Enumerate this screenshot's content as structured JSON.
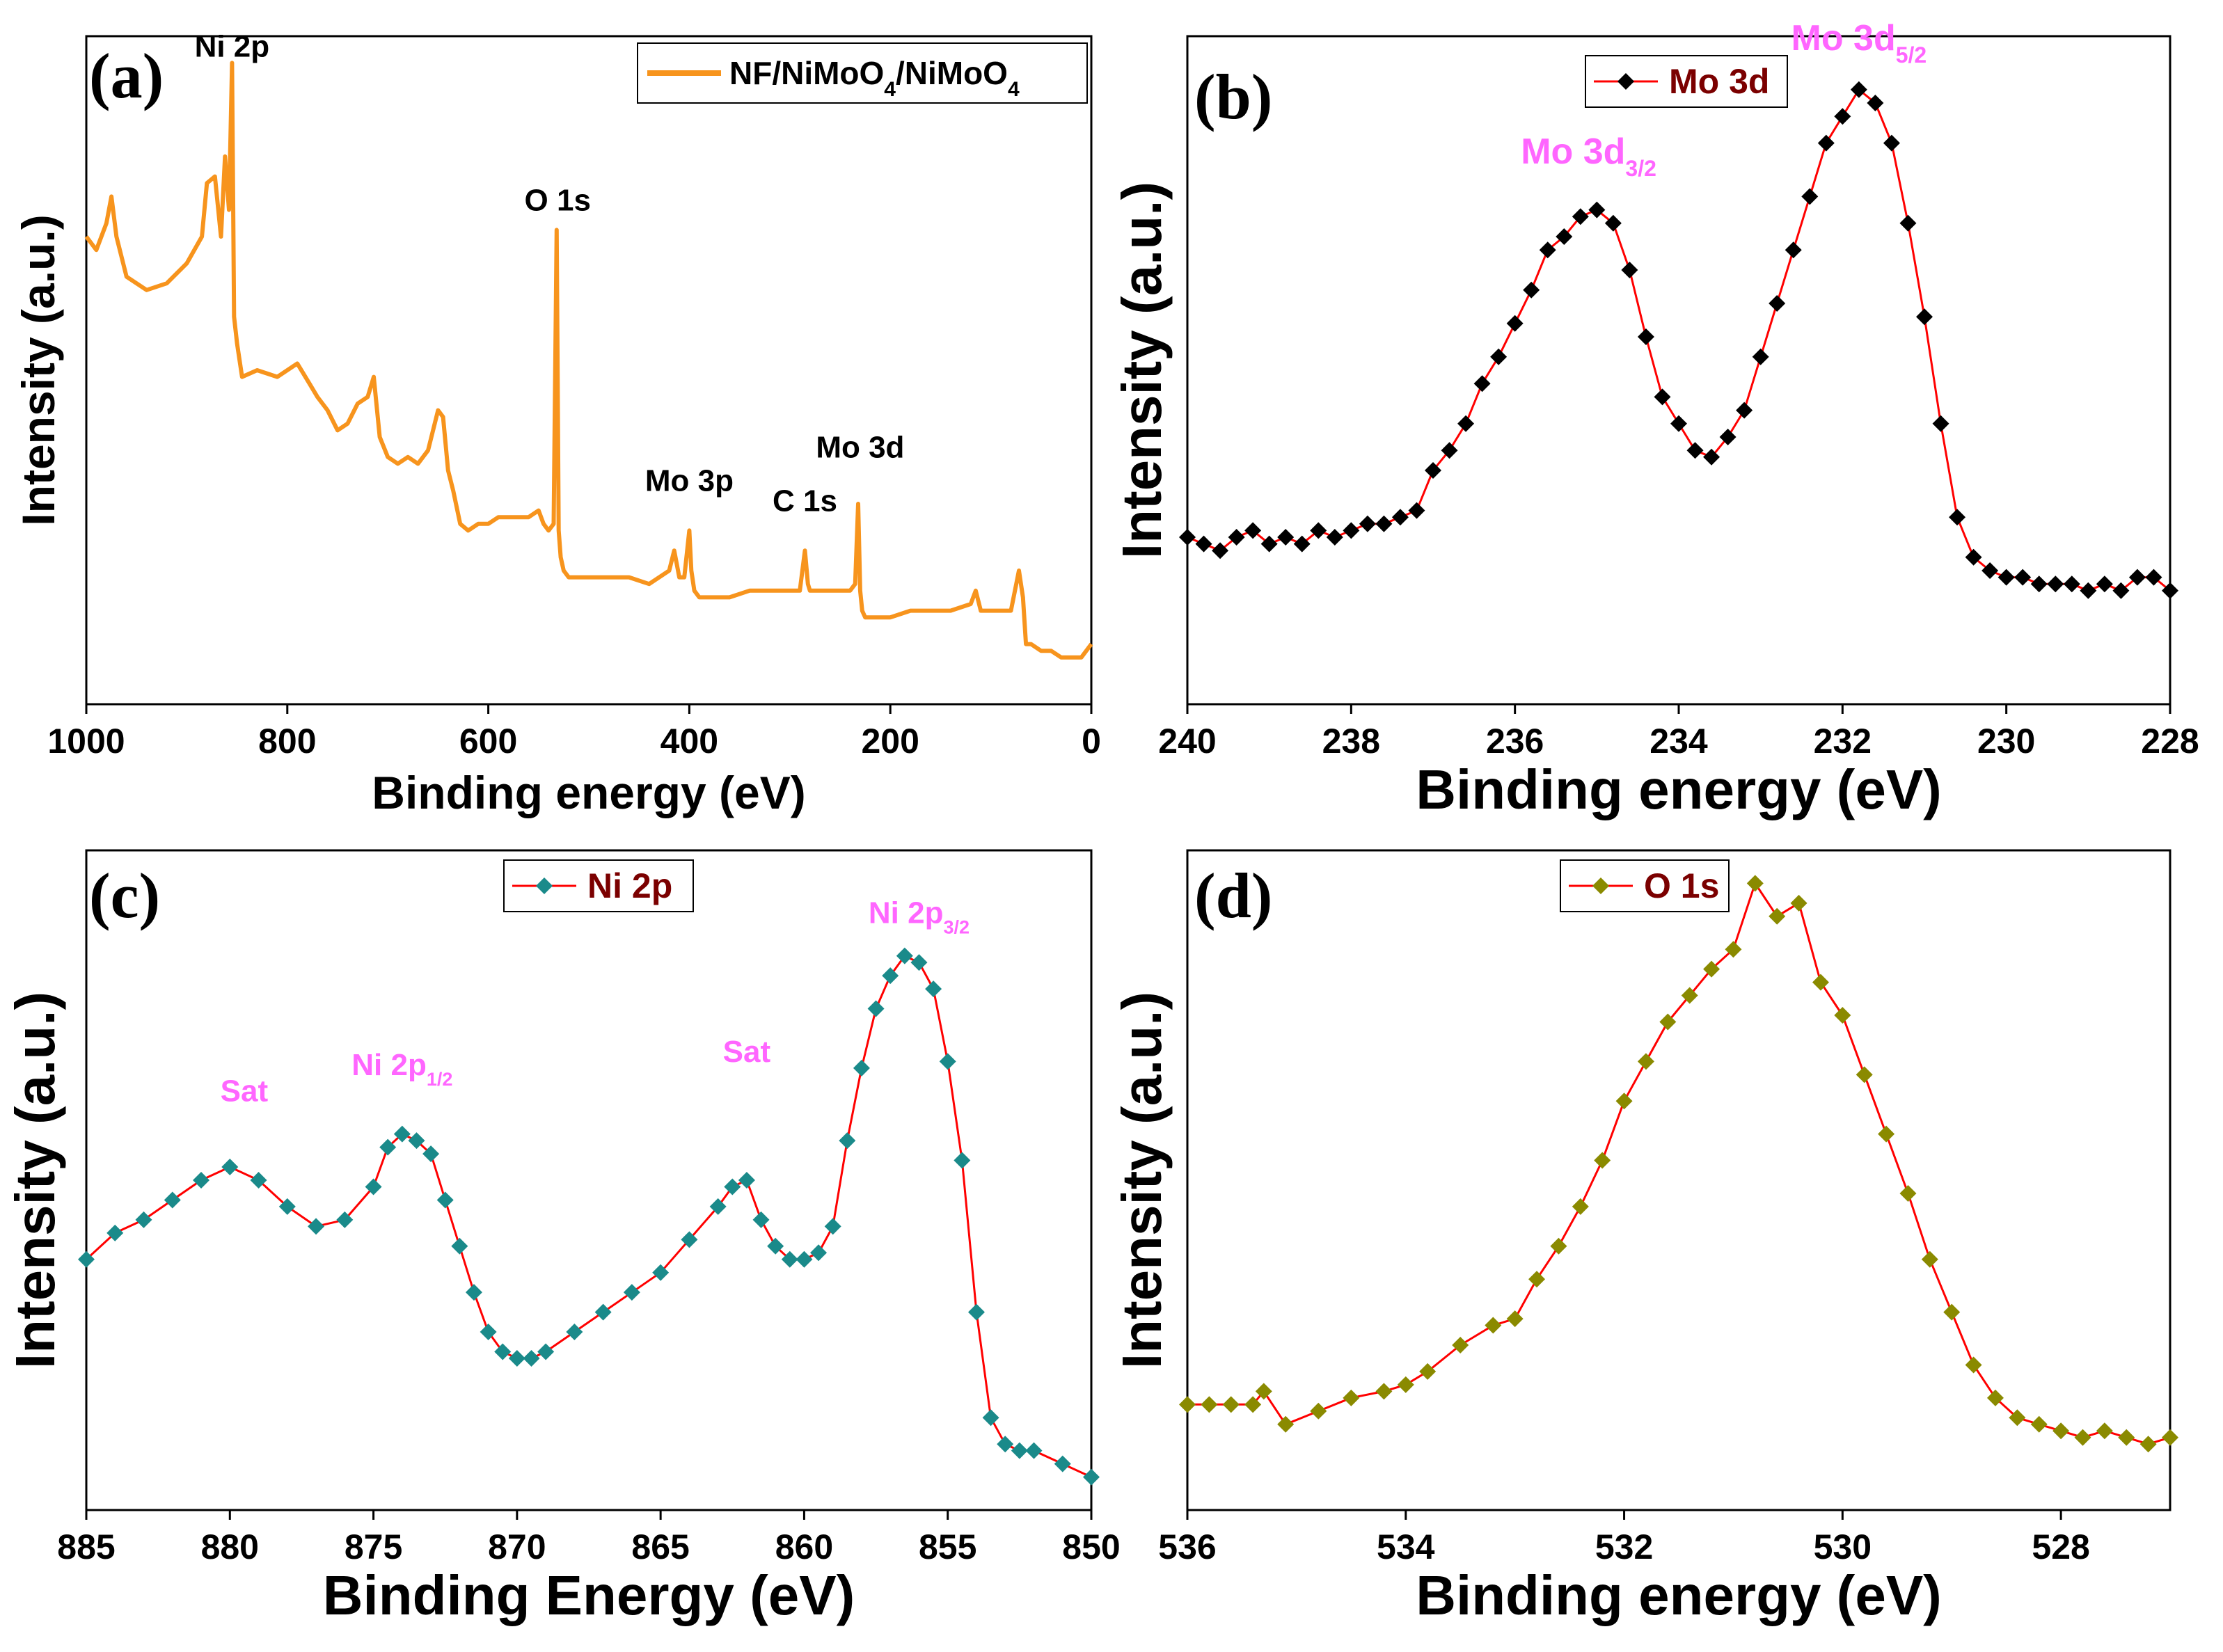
{
  "figure": {
    "background": "#ffffff"
  },
  "chart_data": [
    {
      "id": "a",
      "type": "line",
      "panel_letter": "(a)",
      "xlabel": "Binding energy (eV)",
      "ylabel": "Intensity (a.u.)",
      "xlim": [
        1000,
        0
      ],
      "x_reversed": true,
      "xticks": [
        1000,
        800,
        600,
        400,
        200,
        0
      ],
      "ylim": [
        0,
        100
      ],
      "y_ticks_labeled": false,
      "line_color": "#f7941d",
      "marker": "none",
      "legend": {
        "text": "NF/NiMoO",
        "sub1": "4",
        "mid": "/NiMoO",
        "sub2": "4",
        "position": "top-right"
      },
      "annotations": [
        {
          "text": "Ni 2p",
          "x": 855,
          "y": 94,
          "color": "#000000"
        },
        {
          "text": "O 1s",
          "x": 531,
          "y": 71,
          "color": "#000000"
        },
        {
          "text": "Mo 3p",
          "x": 400,
          "y": 29,
          "color": "#000000"
        },
        {
          "text": "C 1s",
          "x": 285,
          "y": 26,
          "color": "#000000"
        },
        {
          "text": "Mo 3d",
          "x": 230,
          "y": 34,
          "color": "#000000"
        }
      ],
      "series": [
        {
          "name": "NF/NiMoO4/NiMoO4",
          "x": [
            1000,
            990,
            980,
            975,
            970,
            960,
            940,
            920,
            900,
            885,
            880,
            872,
            866,
            862,
            858,
            855,
            853,
            850,
            845,
            830,
            810,
            790,
            778,
            770,
            760,
            750,
            740,
            730,
            720,
            714,
            708,
            700,
            690,
            680,
            670,
            660,
            650,
            645,
            640,
            635,
            628,
            620,
            610,
            600,
            590,
            580,
            570,
            560,
            550,
            545,
            540,
            535,
            532,
            530,
            528,
            525,
            520,
            500,
            480,
            460,
            440,
            420,
            415,
            410,
            405,
            400,
            398,
            395,
            390,
            380,
            360,
            340,
            320,
            300,
            290,
            285,
            282,
            280,
            270,
            250,
            240,
            235,
            232,
            230,
            228,
            225,
            220,
            200,
            180,
            160,
            140,
            120,
            115,
            110,
            100,
            90,
            80,
            72,
            68,
            65,
            60,
            50,
            40,
            30,
            20,
            10,
            0
          ],
          "y": [
            70,
            68,
            72,
            76,
            70,
            64,
            62,
            63,
            66,
            70,
            78,
            79,
            70,
            82,
            74,
            96,
            58,
            54,
            49,
            50,
            49,
            51,
            48,
            46,
            44,
            41,
            42,
            45,
            46,
            49,
            40,
            37,
            36,
            37,
            36,
            38,
            44,
            43,
            35,
            32,
            27,
            26,
            27,
            27,
            28,
            28,
            28,
            28,
            29,
            27,
            26,
            27,
            71,
            26,
            22,
            20,
            19,
            19,
            19,
            19,
            18,
            20,
            23,
            19,
            19,
            26,
            20,
            17,
            16,
            16,
            16,
            17,
            17,
            17,
            17,
            23,
            18,
            17,
            17,
            17,
            17,
            18,
            30,
            17,
            14,
            13,
            13,
            13,
            14,
            14,
            14,
            15,
            17,
            14,
            14,
            14,
            14,
            20,
            16,
            9,
            9,
            8,
            8,
            7,
            7,
            7,
            9
          ]
        }
      ]
    },
    {
      "id": "b",
      "type": "line",
      "panel_letter": "(b)",
      "xlabel": "Binding energy (eV)",
      "ylabel": "Intensity (a.u.)",
      "xlim": [
        240,
        228
      ],
      "x_reversed": true,
      "xticks": [
        240,
        238,
        236,
        234,
        232,
        230,
        228
      ],
      "ylim": [
        0,
        100
      ],
      "y_ticks_labeled": false,
      "line_color": "#ff0000",
      "marker": "diamond",
      "marker_color": "#000000",
      "legend": {
        "text": "Mo 3d",
        "text_color": "#7b0000",
        "position": "top-center"
      },
      "annotations": [
        {
          "text": "Mo 3d",
          "sub": "3/2",
          "x": 235.1,
          "y": 78,
          "color": "#ff66ff"
        },
        {
          "text": "Mo 3d",
          "sub": "5/2",
          "x": 231.8,
          "y": 95,
          "color": "#ff66ff"
        }
      ],
      "series": [
        {
          "name": "Mo 3d",
          "x": [
            240,
            239.8,
            239.6,
            239.4,
            239.2,
            239.0,
            238.8,
            238.6,
            238.4,
            238.2,
            238.0,
            237.8,
            237.6,
            237.4,
            237.2,
            237.0,
            236.8,
            236.6,
            236.4,
            236.2,
            236.0,
            235.8,
            235.6,
            235.4,
            235.2,
            235.0,
            234.8,
            234.6,
            234.4,
            234.2,
            234.0,
            233.8,
            233.6,
            233.4,
            233.2,
            233.0,
            232.8,
            232.6,
            232.4,
            232.2,
            232.0,
            231.8,
            231.6,
            231.4,
            231.2,
            231.0,
            230.8,
            230.6,
            230.4,
            230.2,
            230.0,
            229.8,
            229.6,
            229.4,
            229.2,
            229.0,
            228.8,
            228.6,
            228.4,
            228.2,
            228.0
          ],
          "y": [
            25,
            24,
            23,
            25,
            26,
            24,
            25,
            24,
            26,
            25,
            26,
            27,
            27,
            28,
            29,
            35,
            38,
            42,
            48,
            52,
            57,
            62,
            68,
            70,
            73,
            74,
            72,
            65,
            55,
            46,
            42,
            38,
            37,
            40,
            44,
            52,
            60,
            68,
            76,
            84,
            88,
            92,
            90,
            84,
            72,
            58,
            42,
            28,
            22,
            20,
            19,
            19,
            18,
            18,
            18,
            17,
            18,
            17,
            19,
            19,
            17
          ]
        }
      ]
    },
    {
      "id": "c",
      "type": "line",
      "panel_letter": "(c)",
      "xlabel": "Binding Energy (eV)",
      "ylabel": "Intensity (a.u.)",
      "xlim": [
        885,
        850
      ],
      "x_reversed": true,
      "xticks": [
        885,
        880,
        875,
        870,
        865,
        860,
        855,
        850
      ],
      "ylim": [
        0,
        100
      ],
      "y_ticks_labeled": false,
      "line_color": "#ff0000",
      "marker": "diamond",
      "marker_color": "#1a8a8a",
      "legend": {
        "text": "Ni 2p",
        "text_color": "#7b0000",
        "position": "top-center"
      },
      "annotations": [
        {
          "text": "Sat",
          "x": 879.5,
          "y": 59,
          "color": "#ff66ff"
        },
        {
          "text": "Ni 2p",
          "sub": "1/2",
          "x": 874,
          "y": 63,
          "color": "#ff66ff"
        },
        {
          "text": "Sat",
          "x": 862,
          "y": 65,
          "color": "#ff66ff"
        },
        {
          "text": "Ni 2p",
          "sub": "3/2",
          "x": 856,
          "y": 86,
          "color": "#ff66ff"
        }
      ],
      "series": [
        {
          "name": "Ni 2p",
          "x": [
            885,
            884,
            883,
            882,
            881,
            880,
            879,
            878,
            877,
            876,
            875,
            874.5,
            874,
            873.5,
            873,
            872.5,
            872,
            871.5,
            871,
            870.5,
            870,
            869.5,
            869,
            868,
            867,
            866,
            865,
            864,
            863,
            862.5,
            862,
            861.5,
            861,
            860.5,
            860,
            859.5,
            859,
            858.5,
            858,
            857.5,
            857,
            856.5,
            856,
            855.5,
            855,
            854.5,
            854,
            853.5,
            853,
            852.5,
            852,
            851,
            850
          ],
          "y": [
            38,
            42,
            44,
            47,
            50,
            52,
            50,
            46,
            43,
            44,
            49,
            55,
            57,
            56,
            54,
            47,
            40,
            33,
            27,
            24,
            23,
            23,
            24,
            27,
            30,
            33,
            36,
            41,
            46,
            49,
            50,
            44,
            40,
            38,
            38,
            39,
            43,
            56,
            67,
            76,
            81,
            84,
            83,
            79,
            68,
            53,
            30,
            14,
            10,
            9,
            9,
            7,
            5
          ]
        }
      ]
    },
    {
      "id": "d",
      "type": "line",
      "panel_letter": "(d)",
      "xlabel": "Binding energy (eV)",
      "ylabel": "Intensity (a.u.)",
      "xlim": [
        536,
        527
      ],
      "x_reversed": true,
      "xticks": [
        536,
        534,
        532,
        530,
        528
      ],
      "ylim": [
        0,
        100
      ],
      "y_ticks_labeled": false,
      "line_color": "#ff0000",
      "marker": "diamond",
      "marker_color": "#8a8a00",
      "legend": {
        "text": "O 1s",
        "text_color": "#7b0000",
        "position": "top-center"
      },
      "annotations": [],
      "series": [
        {
          "name": "O 1s",
          "x": [
            536,
            535.8,
            535.6,
            535.4,
            535.3,
            535.1,
            534.8,
            534.5,
            534.2,
            534.0,
            533.8,
            533.5,
            533.2,
            533.0,
            532.8,
            532.6,
            532.4,
            532.2,
            532.0,
            531.8,
            531.6,
            531.4,
            531.2,
            531.0,
            530.8,
            530.6,
            530.4,
            530.2,
            530.0,
            529.8,
            529.6,
            529.4,
            529.2,
            529.0,
            528.8,
            528.6,
            528.4,
            528.2,
            528.0,
            527.8,
            527.6,
            527.4,
            527.2,
            527.0
          ],
          "y": [
            16,
            16,
            16,
            16,
            18,
            13,
            15,
            17,
            18,
            19,
            21,
            25,
            28,
            29,
            35,
            40,
            46,
            53,
            62,
            68,
            74,
            78,
            82,
            85,
            95,
            90,
            92,
            80,
            75,
            66,
            57,
            48,
            38,
            30,
            22,
            17,
            14,
            13,
            12,
            11,
            12,
            11,
            10,
            11
          ]
        }
      ]
    }
  ]
}
